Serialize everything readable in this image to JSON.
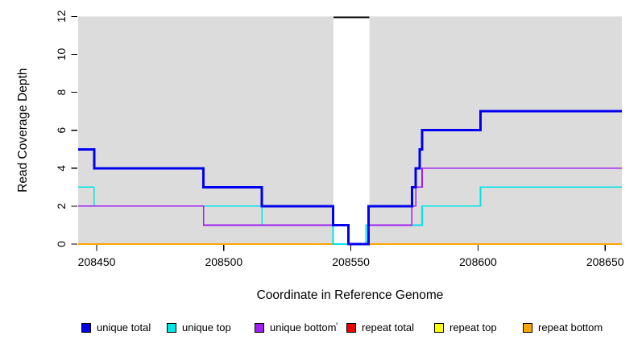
{
  "figure": {
    "background": "#FFFFFF",
    "plot_background": "#DCDCDC"
  },
  "chart_data": {
    "type": "line",
    "subtype": "step-after",
    "title": "",
    "xlabel": "Coordinate in Reference Genome",
    "ylabel": "Read Coverage Depth",
    "xlim": [
      208442.7,
      208656.6
    ],
    "ylim": [
      0,
      12
    ],
    "grid": false,
    "x_ticks": [
      208450,
      208500,
      208550,
      208600,
      208650
    ],
    "x_tick_labels": [
      "208450",
      "208500",
      "208550",
      "208600",
      "208650"
    ],
    "y_ticks": [
      0,
      2,
      4,
      6,
      8,
      10,
      12
    ],
    "y_tick_labels": [
      "0",
      "2",
      "4",
      "6",
      "8",
      "10",
      "12"
    ],
    "masked_region": {
      "x_start": 208543.1,
      "x_end": 208557.3,
      "fill": "#FFFFFF",
      "cap_value": 12,
      "cap_color": "#000000"
    },
    "series": [
      {
        "name": "repeat total",
        "color": "#EE0000",
        "width": 1.6,
        "steps": [
          [
            208442.7,
            0
          ]
        ]
      },
      {
        "name": "repeat top",
        "color": "#FFFF00",
        "width": 1.6,
        "steps": [
          [
            208442.7,
            0
          ]
        ]
      },
      {
        "name": "repeat bottom",
        "color": "#FFA500",
        "width": 1.8,
        "steps": [
          [
            208442.7,
            0
          ]
        ]
      },
      {
        "name": "unique top",
        "color": "#00E5E5",
        "width": 1.6,
        "steps": [
          [
            208442.7,
            3
          ],
          [
            208449,
            2
          ],
          [
            208515,
            1
          ],
          [
            208543,
            0
          ],
          [
            208556,
            1
          ],
          [
            208578,
            2
          ],
          [
            208601,
            3
          ]
        ]
      },
      {
        "name": "unique bottom",
        "color": "#A020F0",
        "width": 1.6,
        "steps": [
          [
            208442.7,
            2
          ],
          [
            208492,
            1
          ],
          [
            208549,
            0
          ],
          [
            208557,
            1
          ],
          [
            208574,
            2
          ],
          [
            208575.5,
            3
          ],
          [
            208578,
            4
          ]
        ]
      },
      {
        "name": "unique total",
        "color": "#0000EE",
        "width": 3,
        "steps": [
          [
            208442.7,
            5
          ],
          [
            208449,
            4
          ],
          [
            208492,
            3
          ],
          [
            208515,
            2
          ],
          [
            208543,
            1
          ],
          [
            208549,
            0
          ],
          [
            208557,
            2
          ],
          [
            208574,
            3
          ],
          [
            208575.5,
            4
          ],
          [
            208577,
            5
          ],
          [
            208578,
            6
          ],
          [
            208601,
            7
          ]
        ]
      }
    ],
    "legend": {
      "position": "bottom",
      "items": [
        {
          "label": "unique total",
          "color": "#0000EE"
        },
        {
          "label": "unique top",
          "color": "#00E5E5"
        },
        {
          "label": "unique bottom",
          "color": "#A020F0"
        },
        {
          "label": "repeat total",
          "color": "#EE0000"
        },
        {
          "label": "repeat top",
          "color": "#FFFF00"
        },
        {
          "label": "repeat bottom",
          "color": "#FFA500"
        }
      ]
    },
    "artifact_mark": "'"
  }
}
